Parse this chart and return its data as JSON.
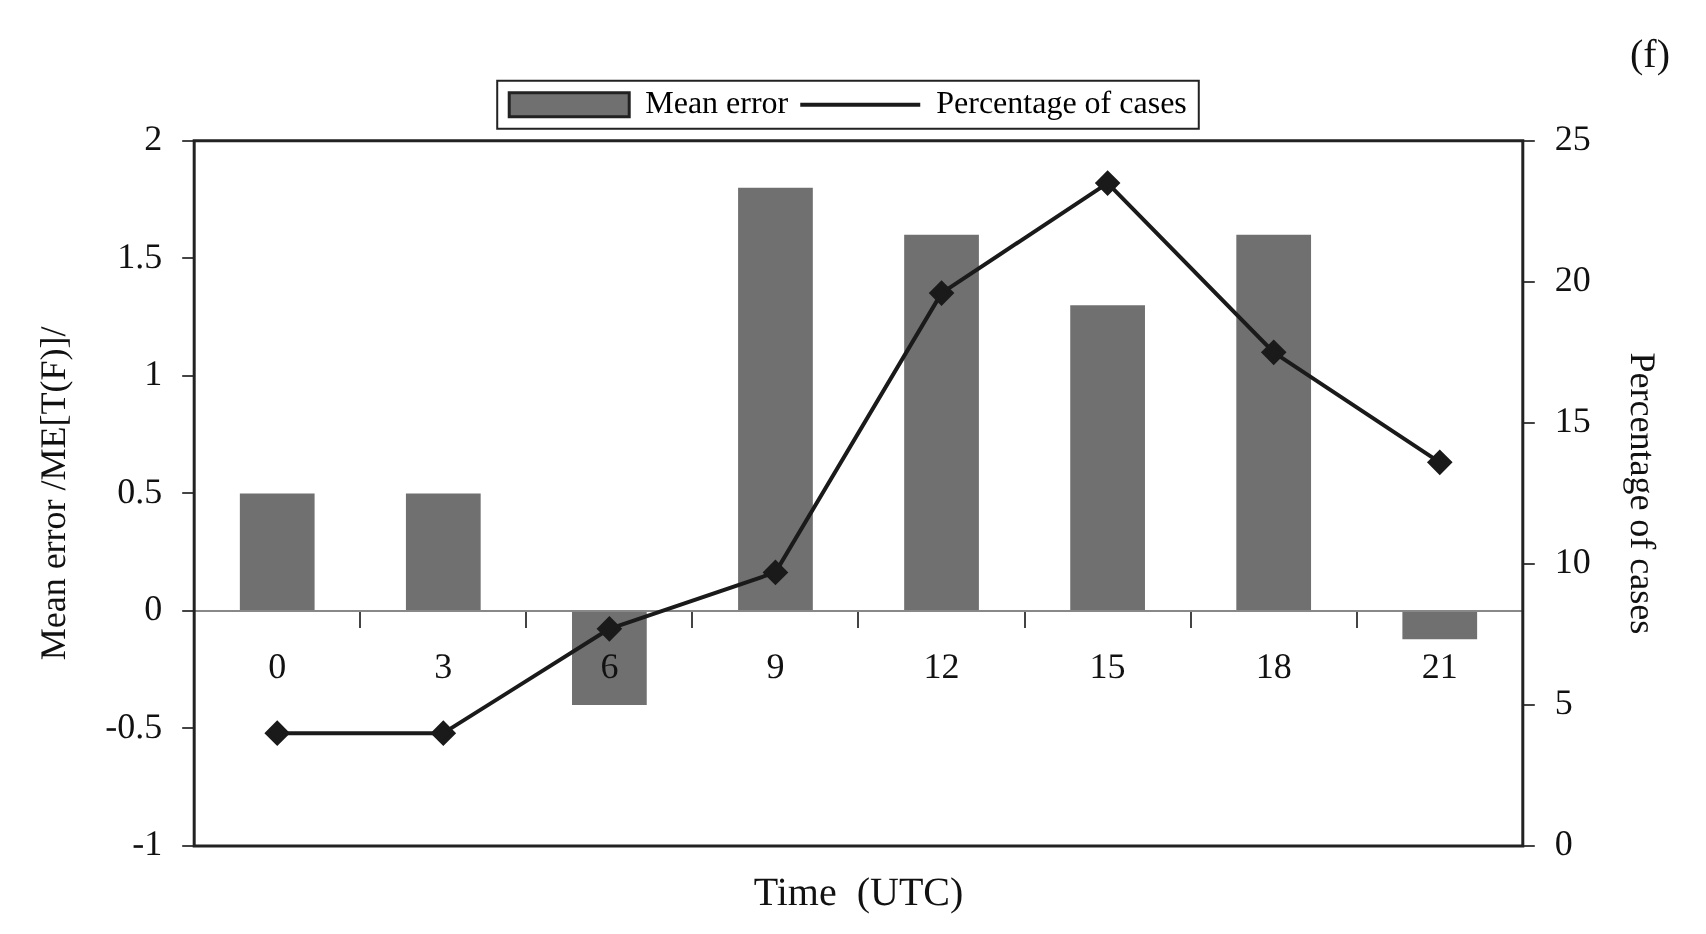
{
  "chart_data": {
    "type": "bar",
    "categories": [
      "0",
      "3",
      "6",
      "9",
      "12",
      "15",
      "18",
      "21"
    ],
    "series": [
      {
        "name": "Mean error",
        "color": "#707070",
        "values": [
          0.5,
          0.5,
          -0.4,
          1.8,
          1.6,
          1.3,
          1.6,
          -0.12
        ]
      },
      {
        "name": "Percentage of cases",
        "type": "line",
        "axis": "y2",
        "color": "#1a1a1a",
        "values": [
          4.0,
          4.0,
          7.7,
          9.7,
          19.6,
          23.5,
          17.5,
          13.6
        ],
        "marker": "diamond"
      }
    ],
    "xlabel": "Time  (UTC)",
    "ylabel": "Mean error /ME[T(F)]/",
    "y2label": "Percentage of cases",
    "ylim": [
      -1,
      2
    ],
    "yticks": [
      -1,
      -0.5,
      0,
      0.5,
      1,
      1.5,
      2
    ],
    "y2lim": [
      0,
      25
    ],
    "y2ticks": [
      0,
      5,
      10,
      15,
      20,
      25
    ],
    "annotations": [
      "(f)"
    ],
    "legend": "top",
    "grid": false
  }
}
